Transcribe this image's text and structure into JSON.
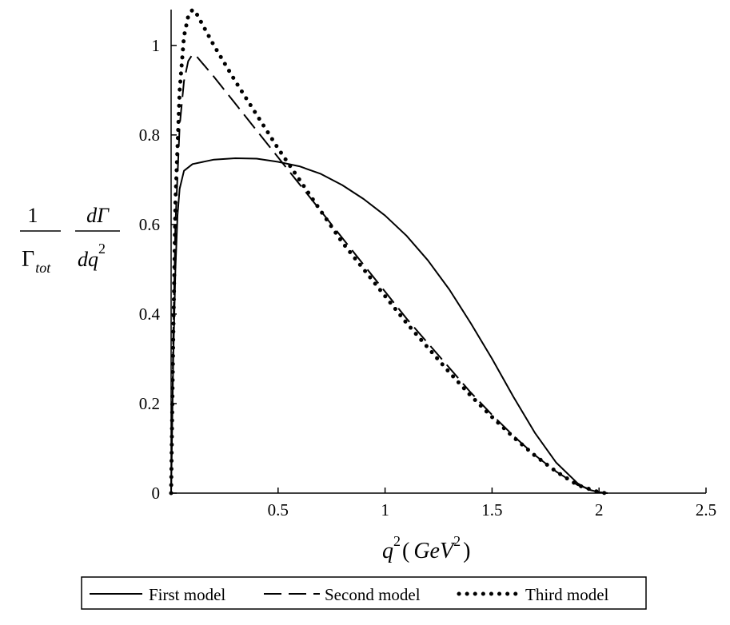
{
  "chart_data": {
    "type": "line",
    "xlim": [
      0,
      2.5
    ],
    "ylim": [
      0,
      1.08
    ],
    "x_ticks": [
      {
        "value": 0.5,
        "label": "0.5"
      },
      {
        "value": 1,
        "label": "1"
      },
      {
        "value": 1.5,
        "label": "1.5"
      },
      {
        "value": 2,
        "label": "2"
      },
      {
        "value": 2.5,
        "label": "2.5"
      }
    ],
    "y_ticks": [
      {
        "value": 0,
        "label": "0"
      },
      {
        "value": 0.2,
        "label": "0.2"
      },
      {
        "value": 0.4,
        "label": "0.4"
      },
      {
        "value": 0.6,
        "label": "0.6"
      },
      {
        "value": 0.8,
        "label": "0.8"
      },
      {
        "value": 1,
        "label": "1"
      }
    ],
    "xlabel": {
      "q": "q",
      "exp": "2",
      "open": "(",
      "unit": "GeV",
      "unit_exp": "2",
      "close": ")"
    },
    "ylabel": {
      "one": "1",
      "gamma": "Γ",
      "gamma_sub": "tot",
      "dgamma": "dΓ",
      "dq": "dq",
      "dq_exp": "2"
    },
    "grid": false,
    "legend_position": "bottom",
    "series": [
      {
        "name": "First model",
        "style": "solid",
        "color": "#000000",
        "x": [
          0.0,
          0.01,
          0.02,
          0.03,
          0.04,
          0.06,
          0.1,
          0.2,
          0.3,
          0.4,
          0.5,
          0.6,
          0.7,
          0.8,
          0.9,
          1.0,
          1.1,
          1.2,
          1.3,
          1.4,
          1.5,
          1.6,
          1.7,
          1.8,
          1.9,
          1.95,
          2.0,
          2.04
        ],
        "y": [
          0.0,
          0.3,
          0.5,
          0.62,
          0.68,
          0.72,
          0.735,
          0.745,
          0.748,
          0.747,
          0.74,
          0.73,
          0.713,
          0.688,
          0.657,
          0.62,
          0.575,
          0.52,
          0.455,
          0.38,
          0.3,
          0.215,
          0.135,
          0.068,
          0.022,
          0.008,
          0.002,
          0.0
        ]
      },
      {
        "name": "Second model",
        "style": "dashed",
        "color": "#000000",
        "x": [
          0.0,
          0.01,
          0.02,
          0.04,
          0.06,
          0.08,
          0.1,
          0.12,
          0.2,
          0.3,
          0.4,
          0.5,
          0.6,
          0.7,
          0.8,
          0.9,
          1.0,
          1.1,
          1.2,
          1.3,
          1.4,
          1.5,
          1.6,
          1.7,
          1.8,
          1.9,
          2.0,
          2.04
        ],
        "y": [
          0.0,
          0.35,
          0.6,
          0.82,
          0.92,
          0.965,
          0.98,
          0.975,
          0.93,
          0.87,
          0.81,
          0.75,
          0.69,
          0.63,
          0.57,
          0.51,
          0.45,
          0.39,
          0.335,
          0.28,
          0.225,
          0.175,
          0.128,
          0.085,
          0.048,
          0.018,
          0.002,
          0.0
        ]
      },
      {
        "name": "Third model",
        "style": "dotted",
        "color": "#000000",
        "x": [
          0.0,
          0.01,
          0.02,
          0.04,
          0.06,
          0.08,
          0.1,
          0.12,
          0.2,
          0.3,
          0.4,
          0.5,
          0.6,
          0.7,
          0.8,
          0.9,
          1.0,
          1.1,
          1.2,
          1.3,
          1.4,
          1.5,
          1.6,
          1.7,
          1.8,
          1.9,
          2.0,
          2.03
        ],
        "y": [
          0.0,
          0.35,
          0.65,
          0.9,
          1.02,
          1.065,
          1.08,
          1.07,
          1.0,
          0.92,
          0.845,
          0.77,
          0.7,
          0.63,
          0.56,
          0.5,
          0.44,
          0.38,
          0.325,
          0.27,
          0.218,
          0.17,
          0.125,
          0.084,
          0.048,
          0.018,
          0.002,
          0.0
        ]
      }
    ]
  }
}
